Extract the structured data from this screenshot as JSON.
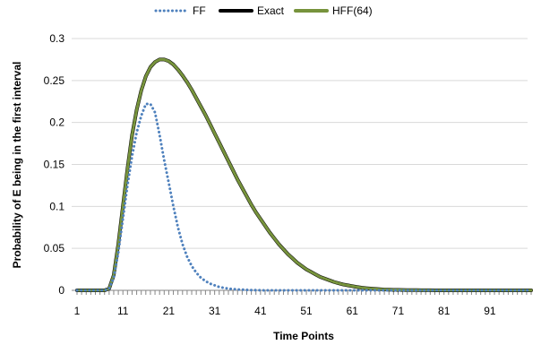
{
  "chart_data": {
    "type": "line",
    "xlabel": "Time Points",
    "ylabel": "Probability of  E being in the first interval",
    "ylim": [
      0,
      0.3
    ],
    "xlim": [
      1,
      100
    ],
    "y_ticks": [
      "0",
      "0.05",
      "0.1",
      "0.15",
      "0.2",
      "0.25",
      "0.3"
    ],
    "x_ticks": [
      "1",
      "11",
      "21",
      "31",
      "41",
      "51",
      "61",
      "71",
      "81",
      "91"
    ],
    "grid": "horizontal",
    "legend_position": "top",
    "series": [
      {
        "name": "FF",
        "color": "#4f81bd",
        "style": "dotted",
        "x": [
          1,
          2,
          3,
          4,
          5,
          6,
          7,
          8,
          9,
          10,
          11,
          12,
          13,
          14,
          15,
          16,
          17,
          18,
          19,
          20,
          21,
          22,
          23,
          24,
          25,
          26,
          27,
          28,
          29,
          30,
          31,
          32,
          33,
          34,
          35,
          36,
          37,
          38,
          39,
          40,
          41,
          42,
          43,
          44,
          45,
          46,
          47,
          48,
          49,
          50,
          51,
          52,
          53,
          54,
          55,
          56,
          57,
          58,
          59,
          60,
          61,
          62,
          63,
          64,
          65,
          66,
          67,
          68,
          69,
          70,
          71,
          72,
          73,
          74,
          75,
          76,
          77,
          78,
          79,
          80,
          81,
          82,
          83,
          84,
          85,
          86,
          87,
          88,
          89,
          90,
          91,
          92,
          93,
          94,
          95,
          96,
          97,
          98,
          99,
          100
        ],
        "values": [
          0,
          0,
          0,
          0,
          0,
          0,
          0,
          0.002,
          0.015,
          0.045,
          0.085,
          0.125,
          0.16,
          0.188,
          0.208,
          0.222,
          0.222,
          0.212,
          0.185,
          0.155,
          0.128,
          0.1,
          0.075,
          0.055,
          0.04,
          0.029,
          0.021,
          0.015,
          0.011,
          0.008,
          0.006,
          0.004,
          0.003,
          0.002,
          0.0015,
          0.001,
          0.0008,
          0.0005,
          0.0003,
          0.0002,
          0.0001,
          0,
          0,
          0,
          0,
          0,
          0,
          0,
          0,
          0,
          0,
          0,
          0,
          0,
          0,
          0,
          0,
          0,
          0,
          0,
          0,
          0,
          0,
          0,
          0,
          0,
          0,
          0,
          0,
          0,
          0,
          0,
          0,
          0,
          0,
          0,
          0,
          0,
          0,
          0,
          0,
          0,
          0,
          0,
          0,
          0,
          0,
          0,
          0,
          0,
          0,
          0,
          0,
          0,
          0,
          0,
          0,
          0,
          0,
          0
        ]
      },
      {
        "name": "Exact",
        "color": "#000000",
        "style": "solid",
        "x": [
          1,
          2,
          3,
          4,
          5,
          6,
          7,
          8,
          9,
          10,
          11,
          12,
          13,
          14,
          15,
          16,
          17,
          18,
          19,
          20,
          21,
          22,
          23,
          24,
          25,
          26,
          27,
          28,
          29,
          30,
          31,
          32,
          33,
          34,
          35,
          36,
          37,
          38,
          39,
          40,
          41,
          42,
          43,
          44,
          45,
          46,
          47,
          48,
          49,
          50,
          51,
          52,
          53,
          54,
          55,
          56,
          57,
          58,
          59,
          60,
          61,
          62,
          63,
          64,
          65,
          66,
          67,
          68,
          69,
          70,
          71,
          72,
          73,
          74,
          75,
          76,
          77,
          78,
          79,
          80,
          81,
          82,
          83,
          84,
          85,
          86,
          87,
          88,
          89,
          90,
          91,
          92,
          93,
          94,
          95,
          96,
          97,
          98,
          99,
          100
        ],
        "values": [
          0,
          0,
          0,
          0,
          0,
          0,
          0,
          0.002,
          0.018,
          0.055,
          0.1,
          0.145,
          0.185,
          0.215,
          0.238,
          0.255,
          0.266,
          0.272,
          0.275,
          0.275,
          0.273,
          0.269,
          0.263,
          0.256,
          0.248,
          0.239,
          0.229,
          0.219,
          0.209,
          0.198,
          0.187,
          0.176,
          0.165,
          0.154,
          0.143,
          0.132,
          0.122,
          0.112,
          0.102,
          0.093,
          0.085,
          0.077,
          0.069,
          0.062,
          0.055,
          0.049,
          0.043,
          0.038,
          0.033,
          0.029,
          0.025,
          0.022,
          0.019,
          0.016,
          0.014,
          0.012,
          0.01,
          0.0085,
          0.007,
          0.006,
          0.005,
          0.004,
          0.0032,
          0.0026,
          0.0021,
          0.0017,
          0.0013,
          0.001,
          0.0008,
          0.0006,
          0.0005,
          0.0004,
          0.0003,
          0.0002,
          0.0002,
          0.0001,
          0.0001,
          0.0001,
          0,
          0,
          0,
          0,
          0,
          0,
          0,
          0,
          0,
          0,
          0,
          0,
          0,
          0,
          0,
          0,
          0,
          0,
          0,
          0,
          0,
          0
        ]
      },
      {
        "name": "HFF(64)",
        "color": "#77933c",
        "style": "solid",
        "x": [
          1,
          2,
          3,
          4,
          5,
          6,
          7,
          8,
          9,
          10,
          11,
          12,
          13,
          14,
          15,
          16,
          17,
          18,
          19,
          20,
          21,
          22,
          23,
          24,
          25,
          26,
          27,
          28,
          29,
          30,
          31,
          32,
          33,
          34,
          35,
          36,
          37,
          38,
          39,
          40,
          41,
          42,
          43,
          44,
          45,
          46,
          47,
          48,
          49,
          50,
          51,
          52,
          53,
          54,
          55,
          56,
          57,
          58,
          59,
          60,
          61,
          62,
          63,
          64,
          65,
          66,
          67,
          68,
          69,
          70,
          71,
          72,
          73,
          74,
          75,
          76,
          77,
          78,
          79,
          80,
          81,
          82,
          83,
          84,
          85,
          86,
          87,
          88,
          89,
          90,
          91,
          92,
          93,
          94,
          95,
          96,
          97,
          98,
          99,
          100
        ],
        "values": [
          0,
          0,
          0,
          0,
          0,
          0,
          0,
          0.002,
          0.018,
          0.055,
          0.1,
          0.145,
          0.185,
          0.215,
          0.238,
          0.255,
          0.266,
          0.272,
          0.275,
          0.275,
          0.273,
          0.269,
          0.263,
          0.256,
          0.248,
          0.239,
          0.229,
          0.219,
          0.209,
          0.198,
          0.187,
          0.176,
          0.165,
          0.154,
          0.143,
          0.132,
          0.122,
          0.112,
          0.102,
          0.093,
          0.085,
          0.077,
          0.069,
          0.062,
          0.055,
          0.049,
          0.043,
          0.038,
          0.033,
          0.029,
          0.025,
          0.022,
          0.019,
          0.016,
          0.014,
          0.012,
          0.01,
          0.0085,
          0.007,
          0.006,
          0.005,
          0.004,
          0.0032,
          0.0026,
          0.0021,
          0.0017,
          0.0013,
          0.001,
          0.0008,
          0.0006,
          0.0005,
          0.0004,
          0.0003,
          0.0002,
          0.0002,
          0.0001,
          0.0001,
          0.0001,
          0,
          0,
          0,
          0,
          0,
          0,
          0,
          0,
          0,
          0,
          0,
          0,
          0,
          0,
          0,
          0,
          0,
          0,
          0,
          0,
          0,
          0
        ]
      }
    ]
  }
}
